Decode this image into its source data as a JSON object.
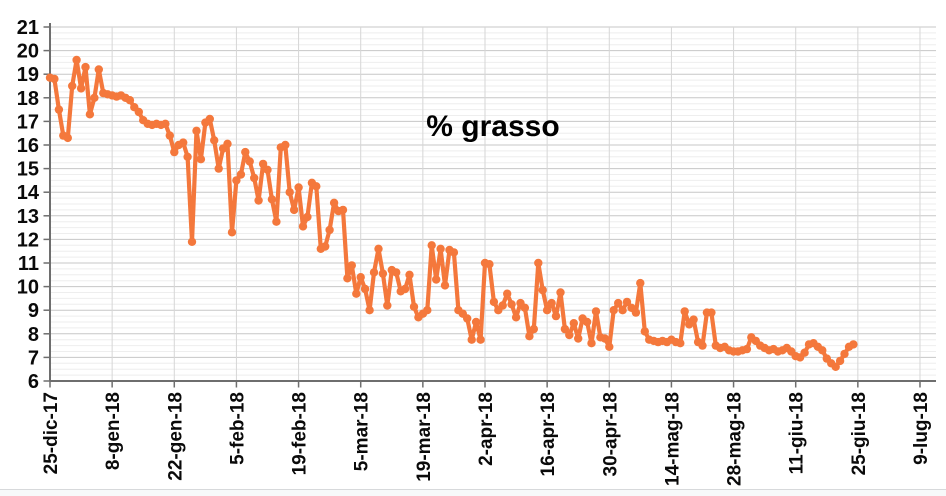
{
  "chart_data": {
    "type": "line",
    "title": "% grasso",
    "legend": "none",
    "grid": {
      "h_major_step": 1,
      "h_minor_step": 0.25,
      "v_gridlines_at_ticks": true
    },
    "ylim": [
      6,
      21
    ],
    "y_tick_labels": [
      "21",
      "20",
      "19",
      "18",
      "17",
      "16",
      "15",
      "14",
      "13",
      "12",
      "11",
      "10",
      "9",
      "8",
      "7",
      "6"
    ],
    "x_tick_labels": [
      "25-dic-17",
      "8-gen-18",
      "22-gen-18",
      "5-feb-18",
      "19-feb-18",
      "5-mar-18",
      "19-mar-18",
      "2-apr-18",
      "16-apr-18",
      "30-apr-18",
      "14-mag-18",
      "28-mag-18",
      "11-giu-18",
      "25-giu-18",
      "9-lug-18"
    ],
    "x_tick_interval_days": 14,
    "series": [
      {
        "name": "% grasso",
        "color": "#f4783c",
        "start_date": "25-dic-17",
        "frequency": "daily",
        "values": [
          18.85,
          18.8,
          17.5,
          16.4,
          16.3,
          18.5,
          19.6,
          18.4,
          19.3,
          17.3,
          18.0,
          19.2,
          18.2,
          18.15,
          18.1,
          18.05,
          18.1,
          18.0,
          17.9,
          17.6,
          17.4,
          17.05,
          16.9,
          16.85,
          16.9,
          16.85,
          16.9,
          16.4,
          15.7,
          16.0,
          16.1,
          15.5,
          11.9,
          16.6,
          15.4,
          16.95,
          17.1,
          16.2,
          15.0,
          15.85,
          16.05,
          12.3,
          14.5,
          14.75,
          15.7,
          15.3,
          14.6,
          13.65,
          15.2,
          14.95,
          13.7,
          12.75,
          15.9,
          16.0,
          14.0,
          13.25,
          14.2,
          12.55,
          12.95,
          14.4,
          14.25,
          11.6,
          11.7,
          12.4,
          13.55,
          13.2,
          13.25,
          10.35,
          10.9,
          9.7,
          10.4,
          9.9,
          9.0,
          10.6,
          11.6,
          10.55,
          9.2,
          10.7,
          10.6,
          9.8,
          9.9,
          10.5,
          9.15,
          8.7,
          8.85,
          9.0,
          11.75,
          10.3,
          11.6,
          10.05,
          11.55,
          11.45,
          9.0,
          8.85,
          8.65,
          7.75,
          8.5,
          7.75,
          11.0,
          10.95,
          9.35,
          9.0,
          9.2,
          9.7,
          9.25,
          8.7,
          9.3,
          9.1,
          7.9,
          8.2,
          11.0,
          9.85,
          9.0,
          9.3,
          8.75,
          9.75,
          8.2,
          7.95,
          8.45,
          7.8,
          8.65,
          8.5,
          7.6,
          8.95,
          7.85,
          7.8,
          7.45,
          9.0,
          9.3,
          9.0,
          9.35,
          9.1,
          8.9,
          10.15,
          8.1,
          7.75,
          7.7,
          7.65,
          7.7,
          7.65,
          7.75,
          7.65,
          7.6,
          8.95,
          8.4,
          8.6,
          7.65,
          7.5,
          8.9,
          8.9,
          7.5,
          7.4,
          7.45,
          7.3,
          7.25,
          7.25,
          7.3,
          7.35,
          7.85,
          7.7,
          7.5,
          7.4,
          7.3,
          7.35,
          7.25,
          7.3,
          7.4,
          7.25,
          7.05,
          7.0,
          7.2,
          7.55,
          7.6,
          7.45,
          7.3,
          6.95,
          6.75,
          6.6,
          6.85,
          7.15,
          7.45,
          7.55
        ]
      }
    ],
    "colors": {
      "line": "#f4783c",
      "major_grid": "#c7c7c7",
      "minor_grid": "#eeeeee",
      "vertical_grid": "#d6d6d6",
      "axis": "#6e6e6e",
      "label_text": "#0a0a0a"
    }
  }
}
